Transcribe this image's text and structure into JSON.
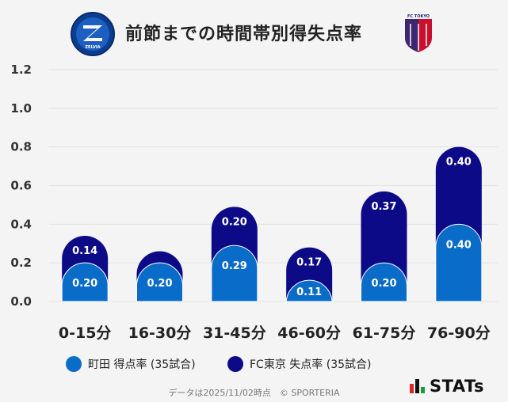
{
  "header": {
    "title": "前節までの時間帯別得失点率",
    "left_logo_text": "ZELVIA",
    "right_logo_text": "FC TOKYO"
  },
  "chart_data": {
    "type": "bar",
    "categories": [
      "0-15分",
      "16-30分",
      "31-45分",
      "46-60分",
      "61-75分",
      "76-90分"
    ],
    "series": [
      {
        "name": "町田 得点率 (35試合)",
        "values": [
          0.2,
          0.2,
          0.29,
          0.11,
          0.2,
          0.4
        ],
        "labels": [
          "0.20",
          "0.20",
          "0.29",
          "0.11",
          "0.20",
          "0.40"
        ],
        "color": "#0a6cc9"
      },
      {
        "name": "FC東京 失点率 (35試合)",
        "values": [
          0.14,
          0.06,
          0.2,
          0.17,
          0.37,
          0.4
        ],
        "labels": [
          "0.14",
          "",
          "0.20",
          "0.17",
          "0.37",
          "0.40"
        ],
        "color": "#0d0a88"
      }
    ],
    "stacked": true,
    "yticks": [
      "0.0",
      "0.2",
      "0.4",
      "0.6",
      "0.8",
      "1.0",
      "1.2"
    ],
    "ylim": [
      0,
      1.2
    ],
    "grid": true
  },
  "legend": {
    "item1": "町田 得点率 (35試合)",
    "item2": "FC東京 失点率 (35試合)"
  },
  "footer": {
    "note": "データは2025/11/02時点　© SPORTERIA"
  },
  "brand": {
    "stats": "STATs"
  },
  "colors": {
    "home": "#0a6cc9",
    "away": "#0d0a88",
    "background": "#f4f4f4",
    "grid": "#e2e2e2"
  }
}
